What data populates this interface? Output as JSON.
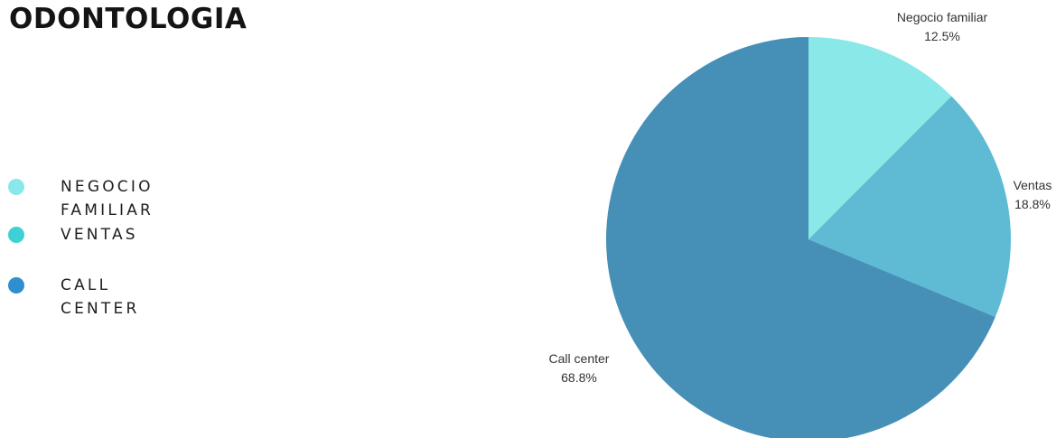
{
  "title": "ODONTOLOGIA",
  "legend": [
    {
      "label": "NEGOCIO FAMILIAR",
      "color": "#8be8ea"
    },
    {
      "label": "VENTAS",
      "color": "#3dd1d6"
    },
    {
      "label": "CALL CENTER",
      "color": "#2f8fce"
    }
  ],
  "chart_data": {
    "type": "pie",
    "title": "ODONTOLOGIA",
    "slices": [
      {
        "label": "Negocio familiar",
        "value": 12.5,
        "display": "12.5%",
        "color": "#8ae8e8"
      },
      {
        "label": "Ventas",
        "value": 18.8,
        "display": "18.8%",
        "color": "#5fbbd3"
      },
      {
        "label": "Call center",
        "value": 68.8,
        "display": "68.8%",
        "color": "#4690b8"
      }
    ]
  }
}
